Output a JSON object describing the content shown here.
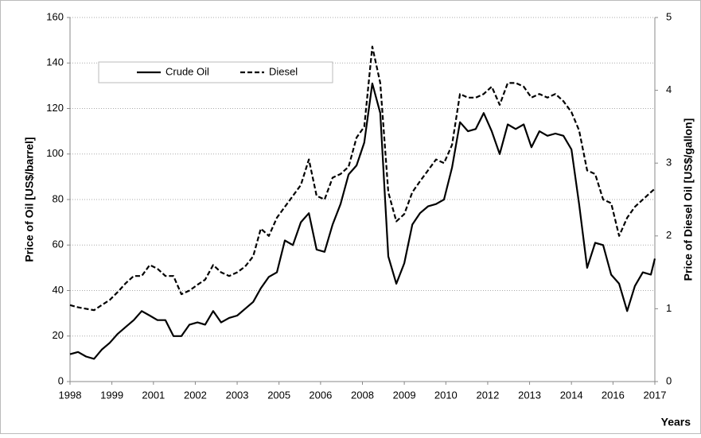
{
  "chart_data": {
    "type": "line",
    "x": [
      1998.0,
      1998.26,
      1998.52,
      1998.78,
      1999.03,
      1999.29,
      1999.55,
      1999.81,
      2000.07,
      2000.33,
      2000.59,
      2000.84,
      2001.1,
      2001.36,
      2001.62,
      2001.88,
      2002.14,
      2002.39,
      2002.65,
      2002.91,
      2003.17,
      2003.43,
      2003.69,
      2003.95,
      2004.2,
      2004.46,
      2004.72,
      2004.98,
      2005.24,
      2005.5,
      2005.76,
      2006.01,
      2006.27,
      2006.53,
      2006.79,
      2007.05,
      2007.31,
      2007.56,
      2007.82,
      2008.08,
      2008.34,
      2008.6,
      2008.86,
      2009.12,
      2009.37,
      2009.63,
      2009.89,
      2010.15,
      2010.41,
      2010.67,
      2010.93,
      2011.18,
      2011.44,
      2011.7,
      2011.96,
      2012.22,
      2012.48,
      2012.74,
      2012.99,
      2013.25,
      2013.51,
      2013.77,
      2014.03,
      2014.29,
      2014.54,
      2014.8,
      2015.06,
      2015.32,
      2015.58,
      2015.84,
      2016.1,
      2016.35,
      2016.61,
      2016.87,
      2017.0
    ],
    "series": [
      {
        "name": "Crude Oil",
        "color": "#000000",
        "line_style": "solid",
        "axis": "y",
        "values": [
          12,
          13,
          11,
          10,
          14,
          17,
          21,
          24,
          27,
          31,
          29,
          27,
          27,
          20,
          20,
          25,
          26,
          25,
          31,
          26,
          28,
          29,
          32,
          35,
          41,
          46,
          48,
          62,
          60,
          70,
          74,
          58,
          57,
          69,
          78,
          91,
          95,
          105,
          131,
          118,
          55,
          43,
          52,
          69,
          74,
          77,
          78,
          80,
          94,
          114,
          110,
          111,
          118,
          110,
          100,
          113,
          111,
          113,
          103,
          110,
          108,
          109,
          108,
          102,
          78,
          50,
          61,
          60,
          47,
          43,
          31,
          42,
          48,
          47,
          54
        ]
      },
      {
        "name": "Diesel",
        "color": "#000000",
        "line_style": "dashed",
        "axis": "y2",
        "values": [
          1.05,
          1.02,
          1.0,
          0.98,
          1.05,
          1.12,
          1.23,
          1.35,
          1.45,
          1.45,
          1.6,
          1.55,
          1.45,
          1.45,
          1.2,
          1.25,
          1.33,
          1.4,
          1.6,
          1.5,
          1.45,
          1.5,
          1.58,
          1.72,
          2.1,
          2.0,
          2.25,
          2.4,
          2.55,
          2.7,
          3.05,
          2.55,
          2.5,
          2.8,
          2.85,
          2.95,
          3.35,
          3.5,
          4.6,
          4.1,
          2.6,
          2.2,
          2.3,
          2.6,
          2.75,
          2.9,
          3.05,
          3.0,
          3.25,
          3.95,
          3.9,
          3.9,
          3.95,
          4.05,
          3.8,
          4.1,
          4.1,
          4.05,
          3.9,
          3.95,
          3.9,
          3.95,
          3.85,
          3.7,
          3.45,
          2.9,
          2.85,
          2.5,
          2.45,
          2.0,
          2.25,
          2.4,
          2.5,
          2.6,
          2.65
        ]
      }
    ],
    "xlim": [
      1998,
      2017
    ],
    "xticks": [
      1998,
      {
        "value": 1999.36,
        "label": "1999"
      },
      {
        "value": 2000.71,
        "label": "2001"
      },
      {
        "value": 2002.07,
        "label": "2002"
      },
      {
        "value": 2003.43,
        "label": "2003"
      },
      {
        "value": 2004.79,
        "label": "2005"
      },
      {
        "value": 2006.14,
        "label": "2006"
      },
      {
        "value": 2007.5,
        "label": "2008"
      },
      {
        "value": 2008.86,
        "label": "2009"
      },
      {
        "value": 2010.21,
        "label": "2010"
      },
      {
        "value": 2011.57,
        "label": "2012"
      },
      {
        "value": 2012.93,
        "label": "2013"
      },
      {
        "value": 2014.29,
        "label": "2014"
      },
      {
        "value": 2015.64,
        "label": "2016"
      },
      2017
    ],
    "ylim": [
      0,
      160
    ],
    "yticks": [
      0,
      20,
      40,
      60,
      80,
      100,
      120,
      140,
      160
    ],
    "y2lim": [
      0,
      5
    ],
    "y2ticks": [
      0,
      1,
      2,
      3,
      4,
      5
    ],
    "ylabel": "Price of Oil [US$/barrel]",
    "y2label": "Price of Diesel Oil [US$/gallon]",
    "xlabel": "Years",
    "grid": true,
    "legend": "top-left"
  }
}
